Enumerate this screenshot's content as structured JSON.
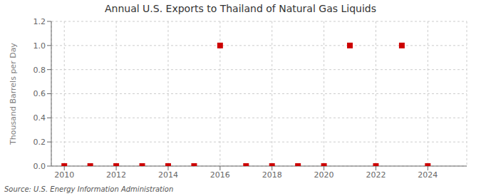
{
  "chart_data": {
    "type": "scatter",
    "title": "Annual U.S. Exports to Thailand of Natural Gas Liquids",
    "y_label": "Thousand Barrels per Day",
    "annotations": [
      "Source: U.S. Energy Information Administration"
    ],
    "x": [
      2010,
      2011,
      2012,
      2013,
      2014,
      2015,
      2016,
      2017,
      2018,
      2019,
      2020,
      2021,
      2022,
      2023,
      2024
    ],
    "values": [
      0.0,
      0.0,
      0.0,
      0.0,
      0.0,
      0.0,
      1.0,
      0.0,
      0.0,
      0.0,
      0.0,
      1.0,
      0.0,
      1.0,
      0.0
    ],
    "xlim": [
      2009.5,
      2025.5
    ],
    "ylim": [
      0,
      1.2
    ],
    "xticks": [
      2010,
      2012,
      2014,
      2016,
      2018,
      2020,
      2022,
      2024
    ],
    "yticks": [
      {
        "value": 0,
        "label": "0.0"
      },
      0.2,
      0.4,
      0.6,
      0.8,
      {
        "value": 1,
        "label": "1.0"
      },
      1.2
    ],
    "color": "#cc0000",
    "marker": "square",
    "grid": true
  }
}
